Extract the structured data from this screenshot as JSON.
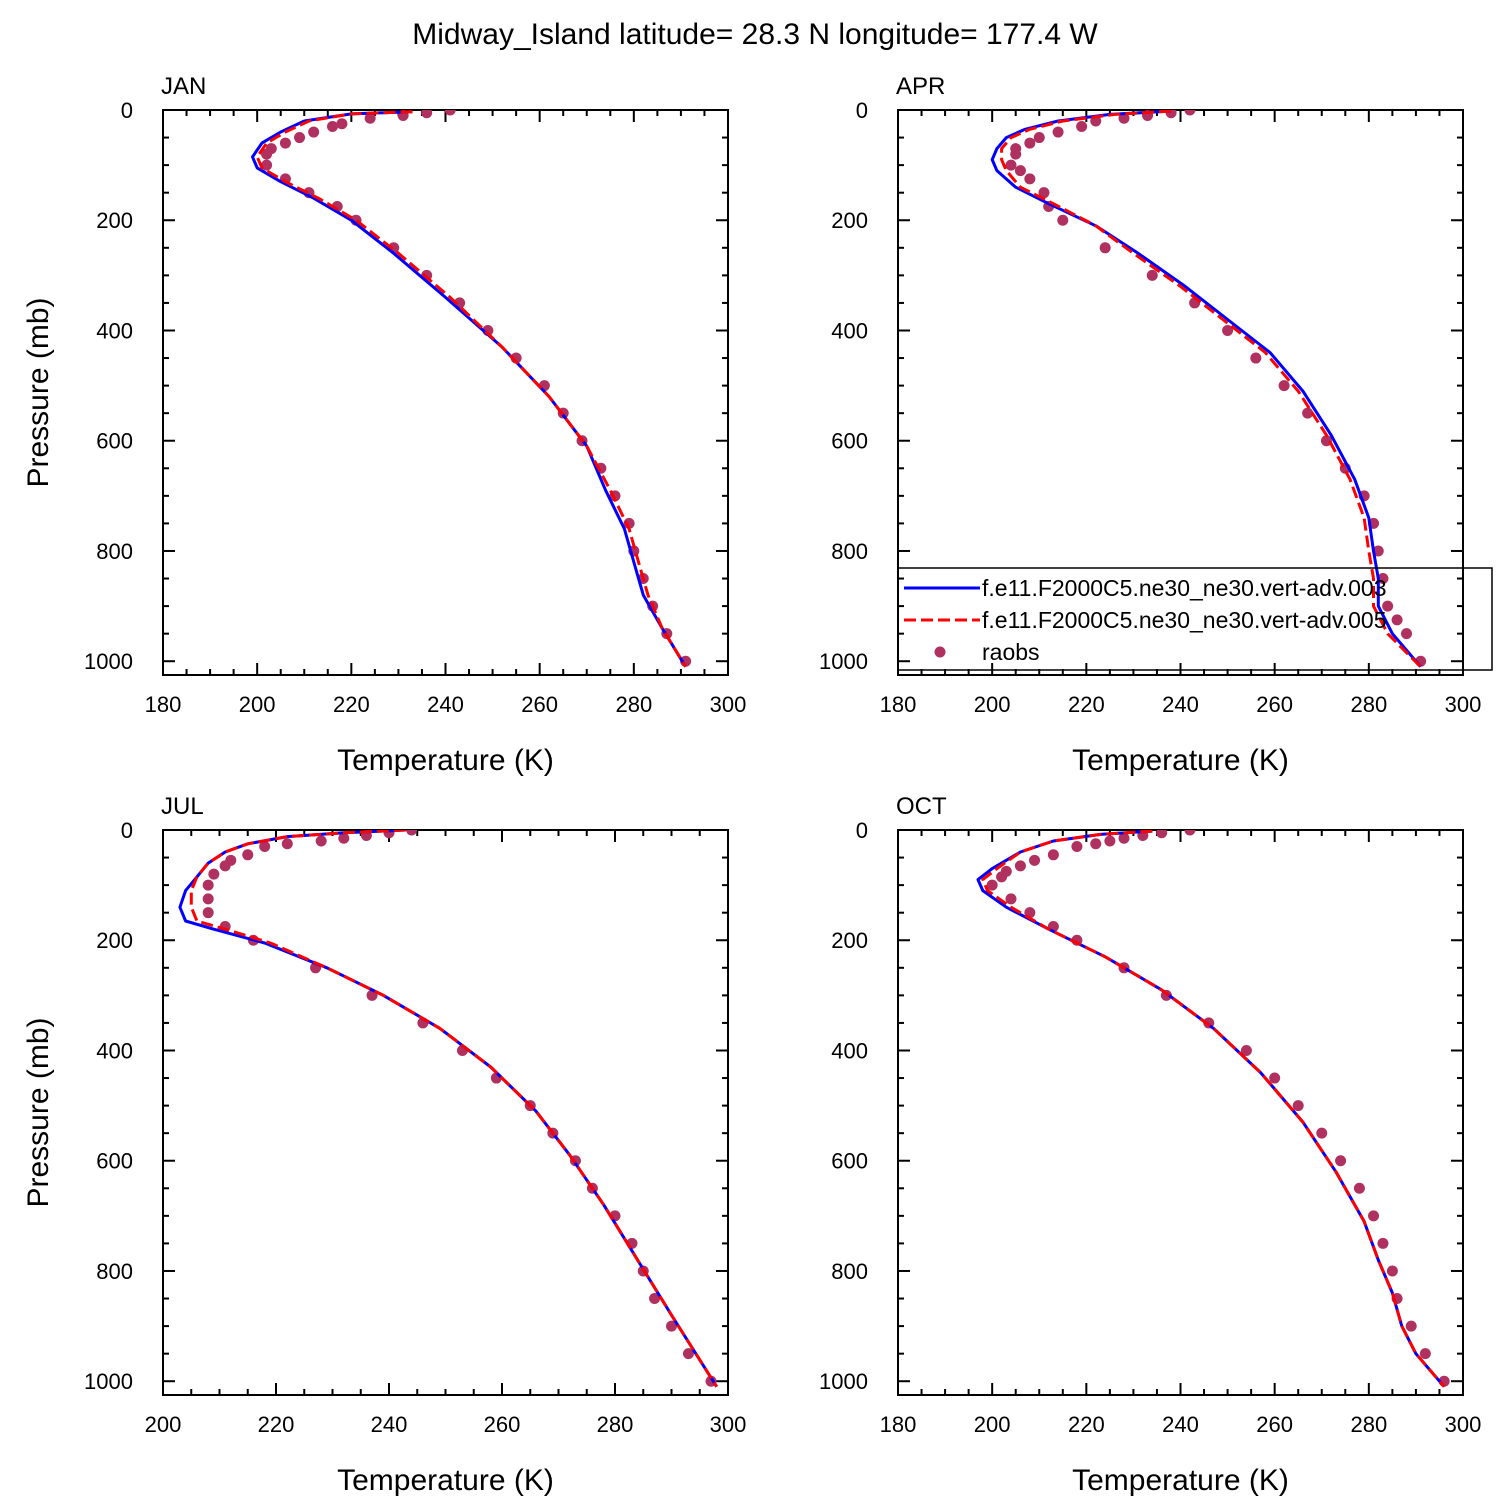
{
  "figure": {
    "title": "Midway_Island  latitude= 28.3 N longitude= 177.4 W"
  },
  "legend": {
    "entries": [
      {
        "label": "f.e11.F2000C5.ne30_ne30.vert-adv.003",
        "color": "#0000ff",
        "style": "solid"
      },
      {
        "label": "f.e11.F2000C5.ne30_ne30.vert-adv.005",
        "color": "#ff0000",
        "style": "dashed"
      },
      {
        "label": "raobs",
        "color": "#b03060",
        "style": "marker"
      }
    ]
  },
  "chart_data": [
    {
      "type": "line",
      "panel_label": "JAN",
      "xlabel": "Temperature (K)",
      "ylabel": "Pressure (mb)",
      "xlim": [
        180,
        300
      ],
      "ylim": [
        1000,
        0
      ],
      "x_ticks": [
        180,
        200,
        220,
        240,
        260,
        280,
        300
      ],
      "y_ticks": [
        0,
        200,
        400,
        600,
        800,
        1000
      ],
      "series": [
        {
          "name": "f.e11.F2000C5.ne30_ne30.vert-adv.003",
          "color": "#0000ff",
          "x": [
            233,
            220,
            210,
            205,
            201,
            199,
            200,
            205,
            212,
            220,
            229,
            240,
            252,
            262,
            270,
            274,
            278,
            280,
            282,
            286,
            291
          ],
          "y": [
            3,
            7,
            20,
            40,
            60,
            85,
            105,
            130,
            160,
            200,
            260,
            340,
            430,
            520,
            610,
            690,
            760,
            820,
            880,
            940,
            1010
          ]
        },
        {
          "name": "f.e11.F2000C5.ne30_ne30.vert-adv.005",
          "color": "#ff0000",
          "x": [
            233,
            220,
            211,
            206,
            202,
            200,
            201,
            206,
            213,
            221,
            230,
            241,
            252,
            262,
            270,
            275,
            279,
            281,
            283,
            286,
            291
          ],
          "y": [
            3,
            7,
            20,
            40,
            60,
            85,
            105,
            130,
            160,
            200,
            260,
            340,
            430,
            520,
            610,
            690,
            760,
            820,
            880,
            940,
            1010
          ]
        },
        {
          "name": "raobs",
          "color": "#b03060",
          "marker": true,
          "x": [
            241,
            236,
            231,
            224,
            218,
            216,
            212,
            209,
            206,
            203,
            202,
            202,
            206,
            211,
            217,
            221,
            229,
            236,
            243,
            249,
            255,
            261,
            265,
            269,
            273,
            276,
            279,
            280,
            282,
            284,
            287,
            291
          ],
          "y": [
            0,
            5,
            10,
            15,
            25,
            30,
            40,
            50,
            60,
            70,
            80,
            100,
            125,
            150,
            175,
            200,
            250,
            300,
            350,
            400,
            450,
            500,
            550,
            600,
            650,
            700,
            750,
            800,
            850,
            900,
            950,
            1000
          ]
        }
      ]
    },
    {
      "type": "line",
      "panel_label": "APR",
      "xlabel": "Temperature (K)",
      "ylabel": "",
      "xlim": [
        180,
        300
      ],
      "ylim": [
        1000,
        0
      ],
      "x_ticks": [
        180,
        200,
        220,
        240,
        260,
        280,
        300
      ],
      "y_ticks": [
        0,
        200,
        400,
        600,
        800,
        1000
      ],
      "series": [
        {
          "name": "f.e11.F2000C5.ne30_ne30.vert-adv.003",
          "color": "#0000ff",
          "x": [
            238,
            225,
            214,
            207,
            203,
            201,
            200,
            201,
            205,
            212,
            222,
            231,
            241,
            250,
            259,
            266,
            272,
            277,
            280,
            281,
            282,
            282,
            285,
            291
          ],
          "y": [
            2,
            8,
            20,
            35,
            50,
            70,
            90,
            110,
            140,
            170,
            210,
            260,
            320,
            380,
            440,
            510,
            590,
            670,
            740,
            800,
            850,
            900,
            950,
            1010
          ]
        },
        {
          "name": "f.e11.F2000C5.ne30_ne30.vert-adv.005",
          "color": "#ff0000",
          "x": [
            238,
            226,
            215,
            208,
            204,
            202,
            202,
            203,
            206,
            213,
            222,
            230,
            240,
            249,
            258,
            265,
            271,
            276,
            279,
            280,
            281,
            281,
            284,
            291
          ],
          "y": [
            2,
            8,
            20,
            35,
            50,
            70,
            90,
            110,
            140,
            170,
            210,
            260,
            320,
            380,
            440,
            510,
            590,
            670,
            740,
            800,
            850,
            900,
            950,
            1010
          ]
        },
        {
          "name": "raobs",
          "color": "#b03060",
          "marker": true,
          "x": [
            242,
            238,
            233,
            228,
            222,
            219,
            214,
            210,
            208,
            205,
            205,
            204,
            206,
            208,
            211,
            212,
            215,
            224,
            234,
            243,
            250,
            256,
            262,
            267,
            271,
            275,
            279,
            281,
            282,
            283,
            284,
            286,
            288,
            291
          ],
          "y": [
            0,
            5,
            10,
            15,
            20,
            30,
            40,
            50,
            60,
            70,
            80,
            100,
            110,
            125,
            150,
            175,
            200,
            250,
            300,
            350,
            400,
            450,
            500,
            550,
            600,
            650,
            700,
            750,
            800,
            850,
            900,
            925,
            950,
            1000
          ]
        }
      ]
    },
    {
      "type": "line",
      "panel_label": "JUL",
      "xlabel": "Temperature (K)",
      "ylabel": "Pressure (mb)",
      "xlim": [
        200,
        300
      ],
      "ylim": [
        1000,
        0
      ],
      "x_ticks": [
        200,
        220,
        240,
        260,
        280,
        300
      ],
      "y_ticks": [
        0,
        200,
        400,
        600,
        800,
        1000
      ],
      "series": [
        {
          "name": "f.e11.F2000C5.ne30_ne30.vert-adv.003",
          "color": "#0000ff",
          "x": [
            243,
            232,
            222,
            215,
            211,
            208,
            206,
            204,
            203,
            204,
            209,
            218,
            229,
            239,
            249,
            258,
            266,
            272,
            278,
            284,
            290,
            298
          ],
          "y": [
            0,
            5,
            12,
            25,
            40,
            60,
            85,
            110,
            140,
            165,
            180,
            205,
            250,
            300,
            360,
            430,
            510,
            590,
            680,
            780,
            880,
            1010
          ]
        },
        {
          "name": "f.e11.F2000C5.ne30_ne30.vert-adv.005",
          "color": "#ff0000",
          "x": [
            243,
            232,
            222,
            215,
            211,
            208,
            206,
            205,
            205,
            206,
            211,
            219,
            229,
            239,
            249,
            258,
            266,
            272,
            278,
            284,
            290,
            298
          ],
          "y": [
            0,
            5,
            12,
            25,
            40,
            60,
            85,
            110,
            140,
            165,
            180,
            205,
            250,
            300,
            360,
            430,
            510,
            590,
            680,
            780,
            880,
            1010
          ]
        },
        {
          "name": "raobs",
          "color": "#b03060",
          "marker": true,
          "x": [
            244,
            240,
            236,
            232,
            228,
            222,
            218,
            215,
            212,
            211,
            209,
            208,
            208,
            208,
            211,
            216,
            227,
            237,
            246,
            253,
            259,
            265,
            269,
            273,
            276,
            280,
            283,
            285,
            287,
            290,
            293,
            297
          ],
          "y": [
            0,
            5,
            10,
            15,
            20,
            25,
            30,
            45,
            55,
            65,
            80,
            100,
            125,
            150,
            175,
            200,
            250,
            300,
            350,
            400,
            450,
            500,
            550,
            600,
            650,
            700,
            750,
            800,
            850,
            900,
            950,
            1000
          ]
        }
      ]
    },
    {
      "type": "line",
      "panel_label": "OCT",
      "xlabel": "Temperature (K)",
      "ylabel": "",
      "xlim": [
        180,
        300
      ],
      "ylim": [
        1000,
        0
      ],
      "x_ticks": [
        180,
        200,
        220,
        240,
        260,
        280,
        300
      ],
      "y_ticks": [
        0,
        200,
        400,
        600,
        800,
        1000
      ],
      "series": [
        {
          "name": "f.e11.F2000C5.ne30_ne30.vert-adv.003",
          "color": "#0000ff",
          "x": [
            234,
            223,
            213,
            206,
            200,
            197,
            198,
            203,
            212,
            224,
            236,
            247,
            257,
            266,
            273,
            279,
            282,
            285,
            287,
            290,
            296
          ],
          "y": [
            2,
            8,
            20,
            40,
            70,
            90,
            110,
            140,
            180,
            230,
            290,
            360,
            440,
            530,
            620,
            710,
            780,
            840,
            900,
            950,
            1010
          ]
        },
        {
          "name": "f.e11.F2000C5.ne30_ne30.vert-adv.005",
          "color": "#ff0000",
          "x": [
            234,
            223,
            213,
            206,
            201,
            198,
            199,
            204,
            212,
            224,
            236,
            247,
            257,
            266,
            273,
            279,
            282,
            285,
            287,
            290,
            296
          ],
          "y": [
            2,
            8,
            20,
            40,
            70,
            90,
            110,
            140,
            180,
            230,
            290,
            360,
            440,
            530,
            620,
            710,
            780,
            840,
            900,
            950,
            1010
          ]
        },
        {
          "name": "raobs",
          "color": "#b03060",
          "marker": true,
          "x": [
            242,
            236,
            232,
            228,
            225,
            222,
            218,
            213,
            209,
            206,
            203,
            202,
            200,
            204,
            208,
            213,
            218,
            228,
            237,
            246,
            254,
            260,
            265,
            270,
            274,
            278,
            281,
            283,
            285,
            286,
            289,
            292,
            296
          ],
          "y": [
            0,
            5,
            10,
            15,
            20,
            25,
            30,
            45,
            55,
            65,
            75,
            85,
            100,
            125,
            150,
            175,
            200,
            250,
            300,
            350,
            400,
            450,
            500,
            550,
            600,
            650,
            700,
            750,
            800,
            850,
            900,
            950,
            1000
          ]
        }
      ]
    }
  ]
}
